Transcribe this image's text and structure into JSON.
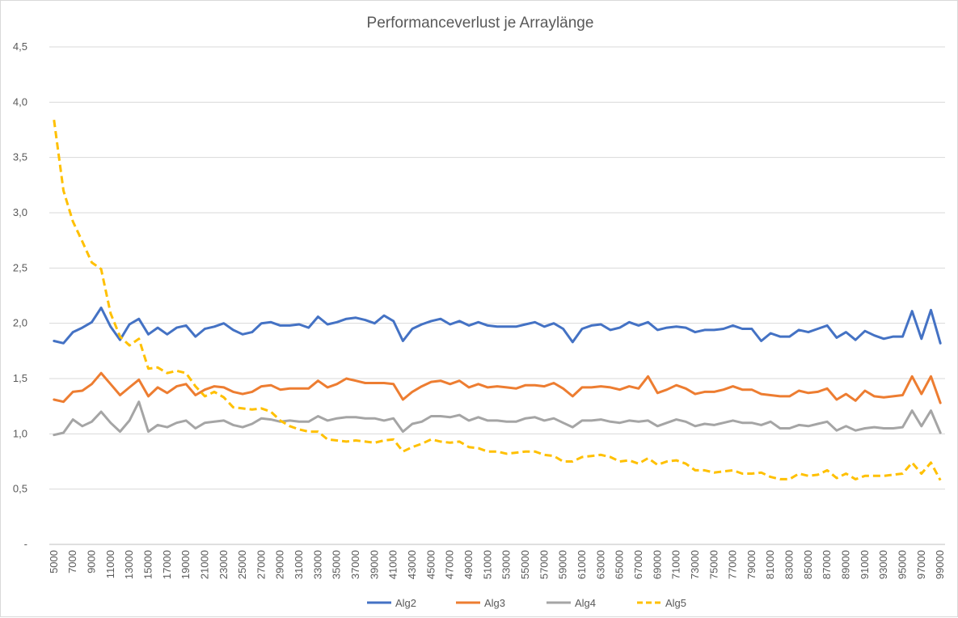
{
  "chart_data": {
    "type": "line",
    "title": "Performanceverlust je Arraylänge",
    "xlabel": "",
    "ylabel": "",
    "ylim": [
      0,
      4.5
    ],
    "y_ticks": [
      "-",
      "0,5",
      "1,0",
      "1,5",
      "2,0",
      "2,5",
      "3,0",
      "3,5",
      "4,0",
      "4,5"
    ],
    "y_tick_values": [
      0,
      0.5,
      1.0,
      1.5,
      2.0,
      2.5,
      3.0,
      3.5,
      4.0,
      4.5
    ],
    "x_tick_labels": [
      "5000",
      "7000",
      "9000",
      "11000",
      "13000",
      "15000",
      "17000",
      "19000",
      "21000",
      "23000",
      "25000",
      "27000",
      "29000",
      "31000",
      "33000",
      "35000",
      "37000",
      "39000",
      "41000",
      "43000",
      "45000",
      "47000",
      "49000",
      "51000",
      "53000",
      "55000",
      "57000",
      "59000",
      "61000",
      "63000",
      "65000",
      "67000",
      "69000",
      "71000",
      "73000",
      "75000",
      "77000",
      "79000",
      "81000",
      "83000",
      "85000",
      "87000",
      "89000",
      "91000",
      "93000",
      "95000",
      "97000",
      "99000"
    ],
    "x_start": 5000,
    "x_step": 1000,
    "grid": true,
    "legend_position": "bottom",
    "series": [
      {
        "name": "Alg2",
        "color": "#4472c4",
        "dash": false,
        "values": [
          1.84,
          1.82,
          1.92,
          1.96,
          2.01,
          2.14,
          1.97,
          1.85,
          1.99,
          2.04,
          1.9,
          1.96,
          1.9,
          1.96,
          1.98,
          1.88,
          1.95,
          1.97,
          2.0,
          1.94,
          1.9,
          1.92,
          2.0,
          2.01,
          1.98,
          1.98,
          1.99,
          1.96,
          2.06,
          1.99,
          2.01,
          2.04,
          2.05,
          2.03,
          2.0,
          2.07,
          2.02,
          1.84,
          1.95,
          1.99,
          2.02,
          2.04,
          1.99,
          2.02,
          1.98,
          2.01,
          1.98,
          1.97,
          1.97,
          1.97,
          1.99,
          2.01,
          1.97,
          2.0,
          1.95,
          1.83,
          1.95,
          1.98,
          1.99,
          1.94,
          1.96,
          2.01,
          1.98,
          2.01,
          1.94,
          1.96,
          1.97,
          1.96,
          1.92,
          1.94,
          1.94,
          1.95,
          1.98,
          1.95,
          1.95,
          1.84,
          1.91,
          1.88,
          1.88,
          1.94,
          1.92,
          1.95,
          1.98,
          1.87,
          1.92,
          1.85,
          1.93,
          1.89,
          1.86,
          1.88,
          1.88,
          2.11,
          1.86,
          2.12,
          1.82
        ]
      },
      {
        "name": "Alg3",
        "color": "#ed7d31",
        "dash": false,
        "values": [
          1.31,
          1.29,
          1.38,
          1.39,
          1.45,
          1.55,
          1.45,
          1.35,
          1.42,
          1.49,
          1.34,
          1.42,
          1.37,
          1.43,
          1.45,
          1.35,
          1.4,
          1.43,
          1.42,
          1.38,
          1.36,
          1.38,
          1.43,
          1.44,
          1.4,
          1.41,
          1.41,
          1.41,
          1.48,
          1.42,
          1.45,
          1.5,
          1.48,
          1.46,
          1.46,
          1.46,
          1.45,
          1.31,
          1.38,
          1.43,
          1.47,
          1.48,
          1.45,
          1.48,
          1.42,
          1.45,
          1.42,
          1.43,
          1.42,
          1.41,
          1.44,
          1.44,
          1.43,
          1.46,
          1.41,
          1.34,
          1.42,
          1.42,
          1.43,
          1.42,
          1.4,
          1.43,
          1.41,
          1.52,
          1.37,
          1.4,
          1.44,
          1.41,
          1.36,
          1.38,
          1.38,
          1.4,
          1.43,
          1.4,
          1.4,
          1.36,
          1.35,
          1.34,
          1.34,
          1.39,
          1.37,
          1.38,
          1.41,
          1.31,
          1.36,
          1.3,
          1.39,
          1.34,
          1.33,
          1.34,
          1.35,
          1.52,
          1.36,
          1.52,
          1.28
        ]
      },
      {
        "name": "Alg4",
        "color": "#a5a5a5",
        "dash": false,
        "values": [
          0.99,
          1.01,
          1.13,
          1.07,
          1.11,
          1.2,
          1.1,
          1.02,
          1.12,
          1.29,
          1.02,
          1.08,
          1.06,
          1.1,
          1.12,
          1.05,
          1.1,
          1.11,
          1.12,
          1.08,
          1.06,
          1.09,
          1.14,
          1.13,
          1.11,
          1.12,
          1.11,
          1.11,
          1.16,
          1.12,
          1.14,
          1.15,
          1.15,
          1.14,
          1.14,
          1.12,
          1.14,
          1.02,
          1.09,
          1.11,
          1.16,
          1.16,
          1.15,
          1.17,
          1.12,
          1.15,
          1.12,
          1.12,
          1.11,
          1.11,
          1.14,
          1.15,
          1.12,
          1.14,
          1.1,
          1.06,
          1.12,
          1.12,
          1.13,
          1.11,
          1.1,
          1.12,
          1.11,
          1.12,
          1.07,
          1.1,
          1.13,
          1.11,
          1.07,
          1.09,
          1.08,
          1.1,
          1.12,
          1.1,
          1.1,
          1.08,
          1.11,
          1.05,
          1.05,
          1.08,
          1.07,
          1.09,
          1.11,
          1.03,
          1.07,
          1.03,
          1.05,
          1.06,
          1.05,
          1.05,
          1.06,
          1.21,
          1.07,
          1.21,
          1.01
        ]
      },
      {
        "name": "Alg5",
        "color": "#ffc000",
        "dash": true,
        "values": [
          3.84,
          3.2,
          2.92,
          2.74,
          2.55,
          2.49,
          2.09,
          1.88,
          1.8,
          1.86,
          1.59,
          1.6,
          1.55,
          1.57,
          1.55,
          1.43,
          1.34,
          1.38,
          1.33,
          1.24,
          1.23,
          1.22,
          1.23,
          1.2,
          1.12,
          1.07,
          1.04,
          1.02,
          1.02,
          0.95,
          0.94,
          0.93,
          0.94,
          0.93,
          0.92,
          0.94,
          0.95,
          0.84,
          0.88,
          0.91,
          0.95,
          0.93,
          0.92,
          0.93,
          0.88,
          0.87,
          0.84,
          0.84,
          0.82,
          0.83,
          0.84,
          0.84,
          0.81,
          0.8,
          0.75,
          0.75,
          0.79,
          0.8,
          0.81,
          0.79,
          0.75,
          0.76,
          0.73,
          0.78,
          0.72,
          0.75,
          0.76,
          0.73,
          0.67,
          0.67,
          0.65,
          0.66,
          0.67,
          0.64,
          0.64,
          0.65,
          0.61,
          0.59,
          0.59,
          0.64,
          0.62,
          0.63,
          0.67,
          0.6,
          0.64,
          0.59,
          0.62,
          0.62,
          0.62,
          0.63,
          0.64,
          0.74,
          0.64,
          0.74,
          0.58
        ]
      }
    ]
  }
}
